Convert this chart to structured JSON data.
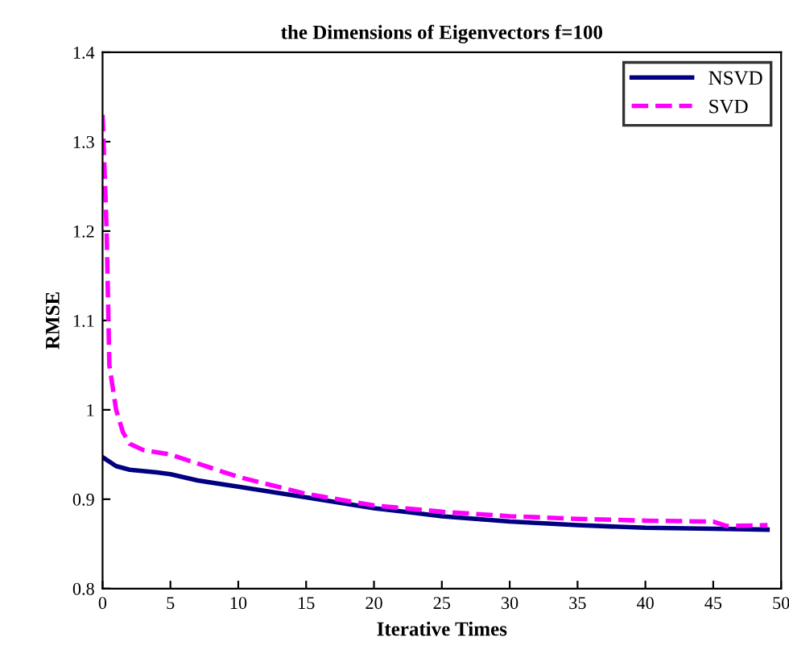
{
  "chart_data": {
    "type": "line",
    "title": "the Dimensions of Eigenvectors f=100",
    "xlabel": "Iterative Times",
    "ylabel": "RMSE",
    "xlim": [
      0,
      50
    ],
    "xticks": [
      0,
      5,
      10,
      15,
      20,
      25,
      30,
      35,
      40,
      45,
      50
    ],
    "ylim": [
      0.8,
      1.4
    ],
    "yticks": [
      0.8,
      0.9,
      {
        "value": 1.0,
        "label": "1"
      },
      1.1,
      1.2,
      1.3,
      1.4
    ],
    "grid": false,
    "legend": "top right",
    "marker": "none",
    "series": [
      {
        "name": "NSVD",
        "color": "#000080",
        "line_style": "solid",
        "x": [
          0,
          1,
          2,
          4,
          5,
          7,
          10,
          15,
          20,
          25,
          30,
          35,
          40,
          45,
          49
        ],
        "values": [
          0.947,
          0.937,
          0.933,
          0.93,
          0.928,
          0.921,
          0.914,
          0.902,
          0.89,
          0.881,
          0.875,
          0.871,
          0.868,
          0.867,
          0.866
        ]
      },
      {
        "name": "SVD",
        "color": "#ff00ff",
        "line_style": "dashed",
        "x": [
          0,
          0.3,
          0.5,
          1,
          1.5,
          2,
          3,
          5,
          7,
          10,
          15,
          20,
          25,
          30,
          35,
          40,
          45,
          46,
          49
        ],
        "values": [
          1.33,
          1.2,
          1.05,
          1.0,
          0.975,
          0.962,
          0.955,
          0.95,
          0.94,
          0.925,
          0.906,
          0.893,
          0.886,
          0.881,
          0.878,
          0.876,
          0.875,
          0.87,
          0.871
        ]
      }
    ]
  }
}
